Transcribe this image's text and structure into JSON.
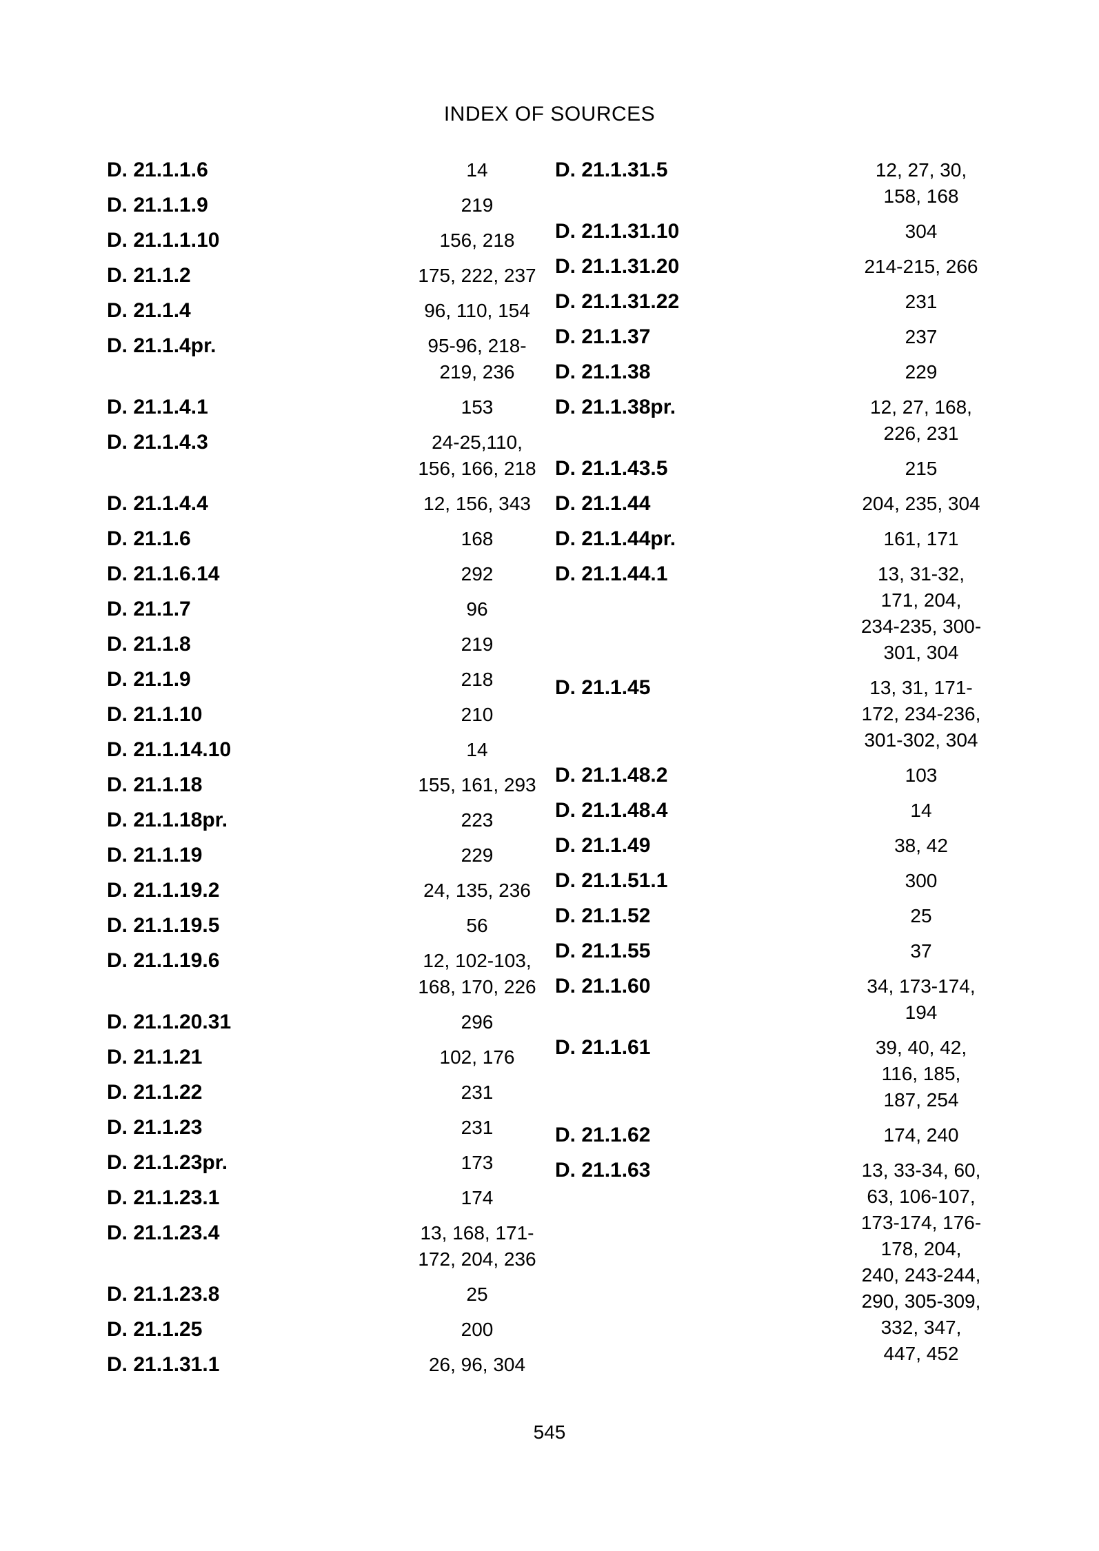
{
  "document": {
    "title": "INDEX OF SOURCES",
    "page_number": "545"
  },
  "index": {
    "left_column": [
      {
        "citation": "D. 21.1.1.6",
        "page_refs": [
          "14"
        ]
      },
      {
        "citation": "D. 21.1.1.9",
        "page_refs": [
          "219"
        ]
      },
      {
        "citation": "D. 21.1.1.10",
        "page_refs": [
          "156, 218"
        ]
      },
      {
        "citation": "D. 21.1.2",
        "page_refs": [
          "175, 222, 237"
        ]
      },
      {
        "citation": "D. 21.1.4",
        "page_refs": [
          "96, 110, 154"
        ]
      },
      {
        "citation": "D. 21.1.4pr.",
        "page_refs": [
          "95-96, 218-",
          "219, 236"
        ]
      },
      {
        "citation": "D. 21.1.4.1",
        "page_refs": [
          "153"
        ]
      },
      {
        "citation": "D. 21.1.4.3",
        "page_refs": [
          "24-25,110,",
          "156, 166, 218"
        ]
      },
      {
        "citation": "D. 21.1.4.4",
        "page_refs": [
          "12, 156, 343"
        ]
      },
      {
        "citation": "D. 21.1.6",
        "page_refs": [
          "168"
        ]
      },
      {
        "citation": "D. 21.1.6.14",
        "page_refs": [
          "292"
        ]
      },
      {
        "citation": "D. 21.1.7",
        "page_refs": [
          "96"
        ]
      },
      {
        "citation": "D. 21.1.8",
        "page_refs": [
          "219"
        ]
      },
      {
        "citation": "D. 21.1.9",
        "page_refs": [
          "218"
        ]
      },
      {
        "citation": "D. 21.1.10",
        "page_refs": [
          "210"
        ]
      },
      {
        "citation": "D. 21.1.14.10",
        "page_refs": [
          "14"
        ]
      },
      {
        "citation": "D. 21.1.18",
        "page_refs": [
          "155, 161, 293"
        ]
      },
      {
        "citation": "D. 21.1.18pr.",
        "page_refs": [
          "223"
        ]
      },
      {
        "citation": "D. 21.1.19",
        "page_refs": [
          "229"
        ]
      },
      {
        "citation": "D. 21.1.19.2",
        "page_refs": [
          "24, 135, 236"
        ]
      },
      {
        "citation": "D. 21.1.19.5",
        "page_refs": [
          "56"
        ]
      },
      {
        "citation": "D. 21.1.19.6",
        "page_refs": [
          "12, 102-103,",
          "168, 170, 226"
        ]
      },
      {
        "citation": "D. 21.1.20.31",
        "page_refs": [
          "296"
        ]
      },
      {
        "citation": "D. 21.1.21",
        "page_refs": [
          "102, 176"
        ]
      },
      {
        "citation": "D. 21.1.22",
        "page_refs": [
          "231"
        ]
      },
      {
        "citation": "D. 21.1.23",
        "page_refs": [
          "231"
        ]
      },
      {
        "citation": "D. 21.1.23pr.",
        "page_refs": [
          "173"
        ]
      },
      {
        "citation": "D. 21.1.23.1",
        "page_refs": [
          "174"
        ]
      },
      {
        "citation": "D. 21.1.23.4",
        "page_refs": [
          "13, 168, 171-",
          "172, 204, 236"
        ]
      },
      {
        "citation": "D. 21.1.23.8",
        "page_refs": [
          "25"
        ]
      },
      {
        "citation": "D. 21.1.25",
        "page_refs": [
          "200"
        ]
      },
      {
        "citation": "D. 21.1.31.1",
        "page_refs": [
          "26, 96, 304"
        ]
      }
    ],
    "right_column": [
      {
        "citation": "D. 21.1.31.5",
        "page_refs": [
          "12, 27, 30,",
          "158, 168"
        ]
      },
      {
        "citation": "D. 21.1.31.10",
        "page_refs": [
          "304"
        ]
      },
      {
        "citation": "D. 21.1.31.20",
        "page_refs": [
          "214-215, 266"
        ]
      },
      {
        "citation": "D. 21.1.31.22",
        "page_refs": [
          "231"
        ]
      },
      {
        "citation": "D. 21.1.37",
        "page_refs": [
          "237"
        ]
      },
      {
        "citation": "D. 21.1.38",
        "page_refs": [
          "229"
        ]
      },
      {
        "citation": "D. 21.1.38pr.",
        "page_refs": [
          "12, 27, 168,",
          "226, 231"
        ]
      },
      {
        "citation": "D. 21.1.43.5",
        "page_refs": [
          "215"
        ]
      },
      {
        "citation": "D. 21.1.44",
        "page_refs": [
          "204, 235, 304"
        ]
      },
      {
        "citation": "D. 21.1.44pr.",
        "page_refs": [
          "161, 171"
        ]
      },
      {
        "citation": "D. 21.1.44.1",
        "page_refs": [
          "13, 31-32,",
          "171, 204,",
          "234-235, 300-",
          "301, 304"
        ]
      },
      {
        "citation": "D. 21.1.45",
        "page_refs": [
          "13, 31, 171-",
          "172, 234-236,",
          "301-302, 304"
        ]
      },
      {
        "citation": "D. 21.1.48.2",
        "page_refs": [
          "103"
        ]
      },
      {
        "citation": "D. 21.1.48.4",
        "page_refs": [
          "14"
        ]
      },
      {
        "citation": "D. 21.1.49",
        "page_refs": [
          "38, 42"
        ]
      },
      {
        "citation": "D. 21.1.51.1",
        "page_refs": [
          "300"
        ]
      },
      {
        "citation": "D. 21.1.52",
        "page_refs": [
          "25"
        ]
      },
      {
        "citation": "D. 21.1.55",
        "page_refs": [
          "37"
        ]
      },
      {
        "citation": "D. 21.1.60",
        "page_refs": [
          "34, 173-174,",
          "194"
        ]
      },
      {
        "citation": "D. 21.1.61",
        "page_refs": [
          "39, 40, 42,",
          "116, 185,",
          "187, 254"
        ]
      },
      {
        "citation": "D. 21.1.62",
        "page_refs": [
          "174, 240"
        ]
      },
      {
        "citation": "D. 21.1.63",
        "page_refs": [
          "13, 33-34, 60,",
          "63, 106-107,",
          "173-174, 176-",
          "178, 204,",
          "240, 243-244,",
          "290, 305-309,",
          "332, 347,",
          "447, 452"
        ]
      }
    ]
  }
}
